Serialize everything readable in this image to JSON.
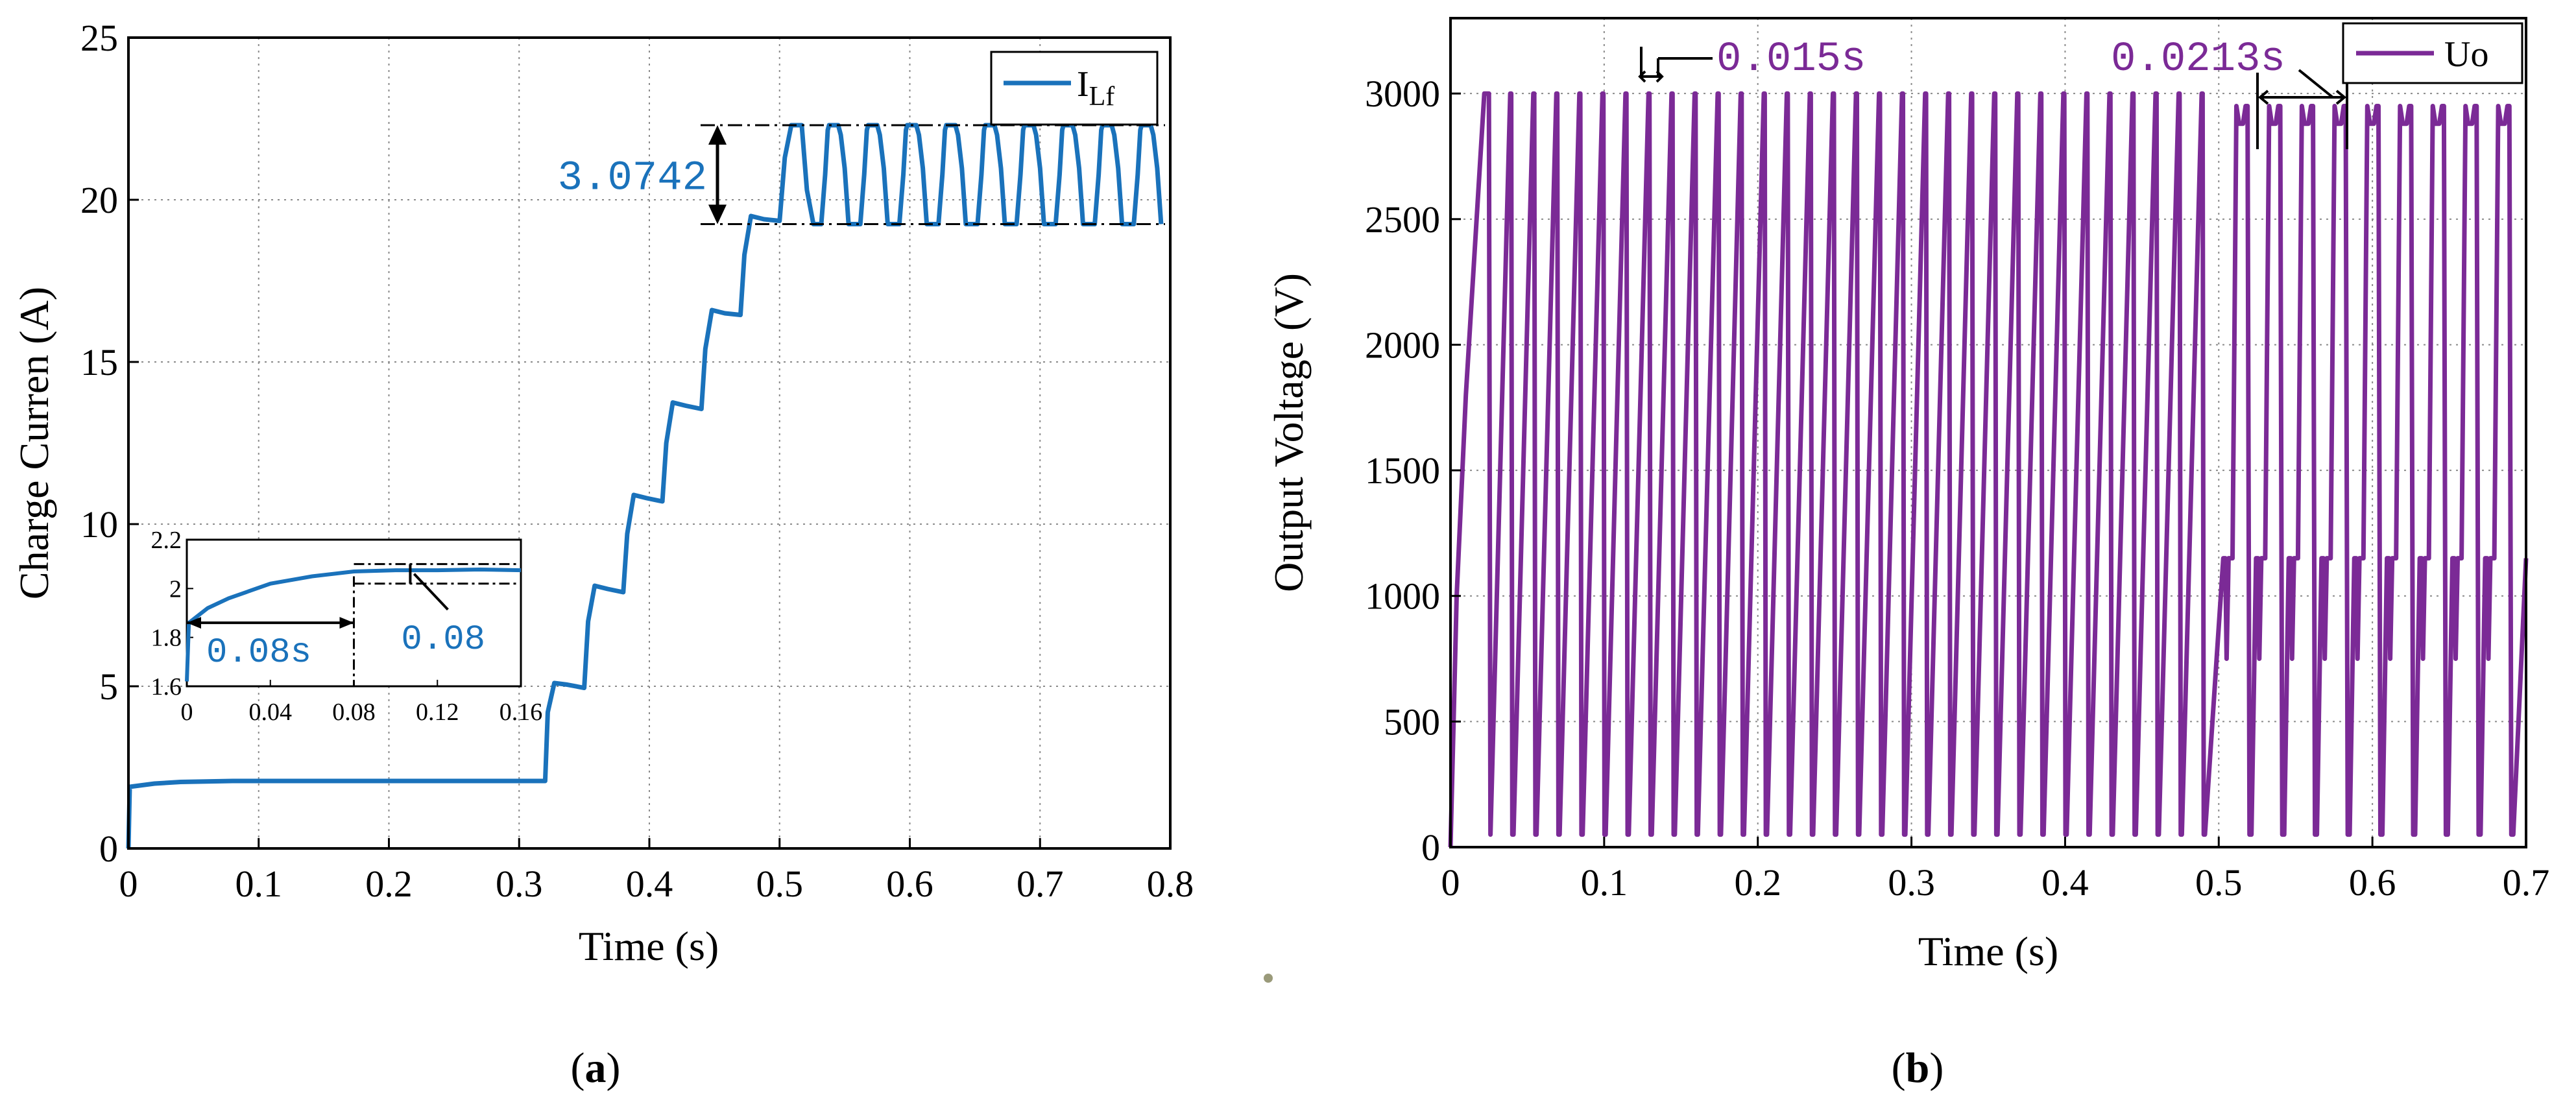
{
  "colors": {
    "current": "#1a72bb",
    "voltage": "#7b2a96",
    "axis": "#000000",
    "grid": "#8a8a8a",
    "dot": "#9a9a7a"
  },
  "chart_data": [
    {
      "id": "a",
      "type": "line",
      "panel_label": "a",
      "xlabel": "Time (s)",
      "ylabel": "Charge Curren (A)",
      "xlim": [
        0,
        0.8
      ],
      "ylim": [
        0,
        25
      ],
      "xticks": [
        0,
        0.1,
        0.2,
        0.3,
        0.4,
        0.5,
        0.6,
        0.7,
        0.8
      ],
      "xtick_labels": [
        "0",
        "0.1",
        "0.2",
        "0.3",
        "0.4",
        "0.5",
        "0.6",
        "0.7",
        "0.8"
      ],
      "yticks": [
        0,
        5,
        10,
        15,
        20,
        25
      ],
      "ytick_labels": [
        "0",
        "5",
        "10",
        "15",
        "20",
        "25"
      ],
      "grid": true,
      "legend": {
        "position": "top-right",
        "label": "I",
        "label_sub": "Lf"
      },
      "series": [
        {
          "name": "ILf",
          "points": [
            [
              0,
              0
            ],
            [
              0.001,
              1.9
            ],
            [
              0.02,
              2.0
            ],
            [
              0.04,
              2.05
            ],
            [
              0.08,
              2.08
            ],
            [
              0.32,
              2.08
            ],
            [
              0.322,
              4.2
            ],
            [
              0.327,
              5.1
            ],
            [
              0.337,
              5.05
            ],
            [
              0.35,
              4.95
            ],
            [
              0.353,
              7.0
            ],
            [
              0.358,
              8.1
            ],
            [
              0.368,
              8.0
            ],
            [
              0.38,
              7.9
            ],
            [
              0.383,
              9.7
            ],
            [
              0.388,
              10.9
            ],
            [
              0.398,
              10.8
            ],
            [
              0.41,
              10.7
            ],
            [
              0.413,
              12.5
            ],
            [
              0.418,
              13.75
            ],
            [
              0.428,
              13.65
            ],
            [
              0.44,
              13.55
            ],
            [
              0.443,
              15.4
            ],
            [
              0.448,
              16.6
            ],
            [
              0.458,
              16.5
            ],
            [
              0.47,
              16.45
            ],
            [
              0.473,
              18.3
            ],
            [
              0.478,
              19.5
            ],
            [
              0.488,
              19.4
            ],
            [
              0.5,
              19.35
            ],
            [
              0.504,
              21.3
            ],
            [
              0.509,
              22.3
            ],
            [
              0.517,
              22.3
            ],
            [
              0.521,
              20.3
            ],
            [
              0.526,
              19.25
            ],
            [
              0.532,
              19.25
            ]
          ],
          "steady_state": {
            "t_start": 0.532,
            "t_end": 0.8,
            "period": 0.03,
            "high": 22.3,
            "low": 19.25
          }
        }
      ],
      "annotations": [
        {
          "text": "3.0742",
          "kind": "ripple",
          "upper": 22.3,
          "lower": 19.25
        }
      ],
      "inset": {
        "xlim": [
          0,
          0.16
        ],
        "ylim": [
          1.6,
          2.2
        ],
        "xticks": [
          0,
          0.04,
          0.08,
          0.12,
          0.16
        ],
        "xtick_labels": [
          "0",
          "0.04",
          "0.08",
          "0.12",
          "0.16"
        ],
        "yticks": [
          1.6,
          1.8,
          2.0,
          2.2
        ],
        "ytick_labels": [
          "1.6",
          "1.8",
          "2",
          "2.2"
        ],
        "points": [
          [
            0,
            1.62
          ],
          [
            0.001,
            1.86
          ],
          [
            0.01,
            1.92
          ],
          [
            0.02,
            1.96
          ],
          [
            0.04,
            2.02
          ],
          [
            0.06,
            2.05
          ],
          [
            0.08,
            2.07
          ],
          [
            0.1,
            2.075
          ],
          [
            0.12,
            2.075
          ],
          [
            0.14,
            2.078
          ],
          [
            0.16,
            2.075
          ]
        ],
        "annotations": [
          {
            "text": "0.08s",
            "kind": "time-span",
            "from": 0,
            "to": 0.08
          },
          {
            "text": "0.08",
            "kind": "band",
            "upper": 2.1,
            "lower": 2.02
          }
        ]
      }
    },
    {
      "id": "b",
      "type": "line",
      "panel_label": "b",
      "xlabel": "Time (s)",
      "ylabel": "Output Voltage (V)",
      "xlim": [
        0,
        0.7
      ],
      "ylim": [
        0,
        3300
      ],
      "xticks": [
        0,
        0.1,
        0.2,
        0.3,
        0.4,
        0.5,
        0.6,
        0.7
      ],
      "xtick_labels": [
        "0",
        "0.1",
        "0.2",
        "0.3",
        "0.4",
        "0.5",
        "0.6",
        "0.7"
      ],
      "yticks": [
        0,
        500,
        1000,
        1500,
        2000,
        2500,
        3000
      ],
      "ytick_labels": [
        "0",
        "500",
        "1000",
        "1500",
        "2000",
        "2500",
        "3000"
      ],
      "grid": true,
      "legend": {
        "position": "top-right",
        "label": "Uo"
      },
      "series": [
        {
          "name": "Uo",
          "first_pulse": [
            [
              0,
              0
            ],
            [
              0.004,
              1000
            ],
            [
              0.01,
              1800
            ],
            [
              0.016,
              2400
            ],
            [
              0.022,
              3000
            ],
            [
              0.025,
              3000
            ],
            [
              0.026,
              50
            ]
          ],
          "regime1": {
            "t_start": 0.026,
            "t_end": 0.5,
            "period": 0.015,
            "min": 50,
            "max": 3000
          },
          "regime2": {
            "t_start": 0.5,
            "t_end": 0.7,
            "period": 0.0213,
            "min": 50,
            "peak": 2950,
            "plateau": 2880,
            "notch_high": 1150,
            "notch_low": 750
          }
        }
      ],
      "annotations": [
        {
          "text": "0.015s",
          "kind": "period"
        },
        {
          "text": "0.0213s",
          "kind": "period"
        }
      ]
    }
  ]
}
